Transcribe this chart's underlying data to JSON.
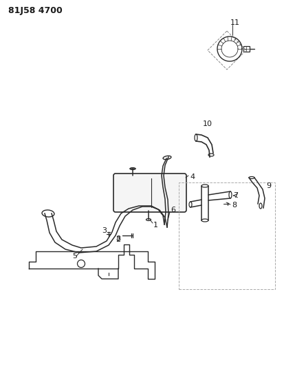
{
  "title": "81J58 4700",
  "bg_color": "#ffffff",
  "line_color": "#2a2a2a",
  "label_color": "#1a1a1a",
  "title_fontsize": 9,
  "label_fontsize": 7.5
}
